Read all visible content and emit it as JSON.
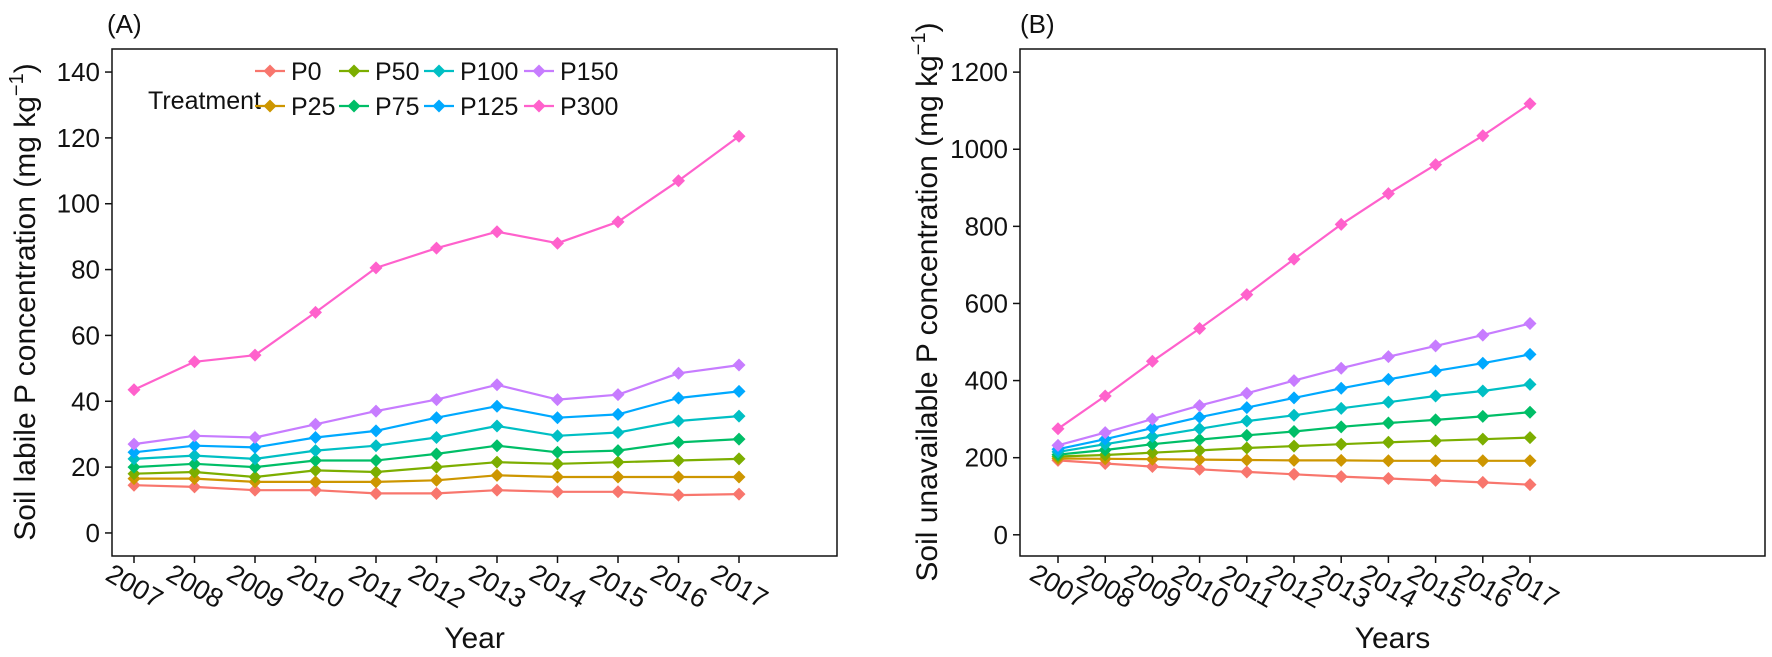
{
  "treatments": [
    "P0",
    "P25",
    "P50",
    "P75",
    "P100",
    "P125",
    "P150",
    "P300"
  ],
  "colors": {
    "P0": "#F8766D",
    "P25": "#CD9600",
    "P50": "#7CAE00",
    "P75": "#00BE67",
    "P100": "#00BFC4",
    "P125": "#00A9FF",
    "P150": "#C77CFF",
    "P300": "#FF61CC"
  },
  "legend": {
    "title": "Treatment"
  },
  "chart_data": [
    {
      "type": "line",
      "panel_label": "(A)",
      "xlabel": "Year",
      "ylabel": "Soil labile P concentration (mg kg",
      "ylabel_sup": "−1",
      "ylabel_close": ")",
      "x": [
        2007,
        2008,
        2009,
        2010,
        2011,
        2012,
        2013,
        2014,
        2015,
        2016,
        2017
      ],
      "ylim": [
        -7,
        147
      ],
      "yticks": [
        0,
        20,
        40,
        60,
        80,
        100,
        120,
        140
      ],
      "series": [
        {
          "name": "P0",
          "values": [
            14.5,
            14,
            13,
            13,
            12,
            12,
            13,
            12.5,
            12.5,
            11.5,
            11.8
          ]
        },
        {
          "name": "P25",
          "values": [
            16.5,
            16.5,
            15.5,
            15.5,
            15.5,
            16,
            17.5,
            17,
            17,
            17,
            17
          ]
        },
        {
          "name": "P50",
          "values": [
            18,
            18.5,
            17,
            19,
            18.5,
            20,
            21.5,
            21,
            21.5,
            22,
            22.5
          ]
        },
        {
          "name": "P75",
          "values": [
            20,
            21,
            20,
            22,
            22,
            24,
            26.5,
            24.5,
            25,
            27.5,
            28.5
          ]
        },
        {
          "name": "P100",
          "values": [
            22.5,
            23.5,
            22.5,
            25,
            26.5,
            29,
            32.5,
            29.5,
            30.5,
            34,
            35.5
          ]
        },
        {
          "name": "P125",
          "values": [
            24.5,
            26.5,
            26,
            29,
            31,
            35,
            38.5,
            35,
            36,
            41,
            43
          ]
        },
        {
          "name": "P150",
          "values": [
            27,
            29.5,
            29,
            33,
            37,
            40.5,
            45,
            40.5,
            42,
            48.5,
            51
          ]
        },
        {
          "name": "P300",
          "values": [
            43.5,
            52,
            54,
            67,
            80.5,
            86.5,
            91.5,
            88,
            94.5,
            107,
            120.5
          ]
        }
      ]
    },
    {
      "type": "line",
      "panel_label": "(B)",
      "xlabel": "Years",
      "ylabel": "Soil unavailable P concentration (mg kg",
      "ylabel_sup": "−1",
      "ylabel_close": ")",
      "x": [
        2007,
        2008,
        2009,
        2010,
        2011,
        2012,
        2013,
        2014,
        2015,
        2016,
        2017
      ],
      "ylim": [
        -55,
        1260
      ],
      "yticks": [
        0,
        200,
        400,
        600,
        800,
        1000,
        1200
      ],
      "series": [
        {
          "name": "P0",
          "values": [
            193,
            185,
            177,
            170,
            163,
            157,
            151,
            146,
            141,
            136,
            130
          ]
        },
        {
          "name": "P25",
          "values": [
            198,
            197,
            196,
            195,
            194,
            193,
            193,
            192,
            192,
            192,
            192
          ]
        },
        {
          "name": "P50",
          "values": [
            203,
            207,
            213,
            219,
            225,
            230,
            235,
            240,
            244,
            248,
            252
          ]
        },
        {
          "name": "P75",
          "values": [
            208,
            220,
            235,
            247,
            258,
            268,
            280,
            290,
            298,
            307,
            318
          ]
        },
        {
          "name": "P100",
          "values": [
            215,
            235,
            255,
            275,
            295,
            310,
            328,
            344,
            360,
            373,
            390
          ]
        },
        {
          "name": "P125",
          "values": [
            222,
            248,
            277,
            305,
            330,
            355,
            380,
            403,
            425,
            445,
            468
          ]
        },
        {
          "name": "P150",
          "values": [
            232,
            265,
            300,
            335,
            367,
            400,
            432,
            462,
            490,
            518,
            548
          ]
        },
        {
          "name": "P300",
          "values": [
            275,
            360,
            450,
            535,
            623,
            715,
            805,
            885,
            960,
            1035,
            1118
          ]
        }
      ]
    }
  ]
}
